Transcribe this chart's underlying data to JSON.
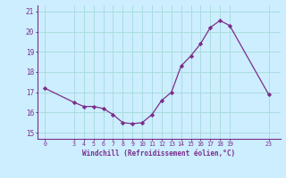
{
  "x": [
    0,
    3,
    4,
    5,
    6,
    7,
    8,
    9,
    10,
    11,
    12,
    13,
    14,
    15,
    16,
    17,
    18,
    19,
    23
  ],
  "y": [
    17.2,
    16.5,
    16.3,
    16.3,
    16.2,
    15.9,
    15.5,
    15.45,
    15.5,
    15.9,
    16.6,
    17.0,
    18.3,
    18.8,
    19.4,
    20.2,
    20.55,
    20.3,
    16.9
  ],
  "line_color": "#7b2d8b",
  "marker": "D",
  "marker_size": 2.2,
  "bg_color": "#cceeff",
  "grid_color": "#aadddd",
  "spine_color": "#7b2d8b",
  "xlabel": "Windchill (Refroidissement éolien,°C)",
  "xlabel_color": "#7b2d8b",
  "tick_color": "#7b2d8b",
  "xticks": [
    0,
    3,
    4,
    5,
    6,
    7,
    8,
    9,
    10,
    11,
    12,
    13,
    14,
    15,
    16,
    17,
    18,
    19,
    23
  ],
  "yticks": [
    15,
    16,
    17,
    18,
    19,
    20,
    21
  ],
  "ylim": [
    14.7,
    21.3
  ],
  "xlim": [
    -0.8,
    24.2
  ]
}
